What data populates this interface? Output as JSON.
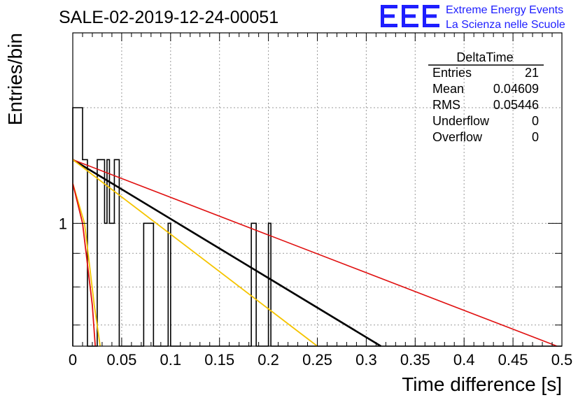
{
  "chart_data": {
    "type": "histogram",
    "title": "SALE-02-2019-12-24-00051",
    "xlabel": "Time difference [s]",
    "ylabel": "Entries/bin",
    "xlim": [
      0,
      0.5
    ],
    "ylog": true,
    "ylim": [
      0.65,
      1.95
    ],
    "x_ticks": [
      {
        "value": 0,
        "label": "0"
      },
      {
        "value": 0.05,
        "label": "0.05"
      },
      {
        "value": 0.1,
        "label": "0.1"
      },
      {
        "value": 0.15,
        "label": "0.15"
      },
      {
        "value": 0.2,
        "label": "0.2"
      },
      {
        "value": 0.25,
        "label": "0.25"
      },
      {
        "value": 0.3,
        "label": "0.3"
      },
      {
        "value": 0.35,
        "label": "0.35"
      },
      {
        "value": 0.4,
        "label": "0.4"
      },
      {
        "value": 0.45,
        "label": "0.45"
      },
      {
        "value": 0.5,
        "label": "0.5"
      }
    ],
    "y_ticks": [
      {
        "value": 1,
        "label": "1"
      }
    ],
    "grid": true,
    "bin_width": 0.0025,
    "bins": [
      {
        "x0": 0.0,
        "x1": 0.01,
        "value": 1.5
      },
      {
        "x0": 0.01,
        "x1": 0.015,
        "value": 1.25
      },
      {
        "x0": 0.015,
        "x1": 0.025,
        "value": 0.65
      },
      {
        "x0": 0.025,
        "x1": 0.0325,
        "value": 1.25
      },
      {
        "x0": 0.0325,
        "x1": 0.035,
        "value": 1.0
      },
      {
        "x0": 0.035,
        "x1": 0.0375,
        "value": 1.25
      },
      {
        "x0": 0.0375,
        "x1": 0.0425,
        "value": 1.0
      },
      {
        "x0": 0.0425,
        "x1": 0.0475,
        "value": 1.25
      },
      {
        "x0": 0.0475,
        "x1": 0.0725,
        "value": 0.65
      },
      {
        "x0": 0.0725,
        "x1": 0.0825,
        "value": 1.0
      },
      {
        "x0": 0.0825,
        "x1": 0.0975,
        "value": 0.65
      },
      {
        "x0": 0.0975,
        "x1": 0.0975,
        "value": 1.0
      },
      {
        "x0": 0.0975,
        "x1": 0.1,
        "value": 1.0
      },
      {
        "x0": 0.1,
        "x1": 0.1825,
        "value": 0.65
      },
      {
        "x0": 0.1825,
        "x1": 0.1875,
        "value": 1.0
      },
      {
        "x0": 0.1875,
        "x1": 0.2,
        "value": 0.65
      },
      {
        "x0": 0.2,
        "x1": 0.2025,
        "value": 1.0
      },
      {
        "x0": 0.2025,
        "x1": 0.5,
        "value": 0.65
      }
    ],
    "series": [
      {
        "color": "#000000",
        "width": 2.6,
        "points": [
          [
            0.0,
            1.25
          ],
          [
            0.315,
            0.65
          ]
        ]
      },
      {
        "color": "#e01010",
        "width": 1.6,
        "points": [
          [
            0.0,
            1.25
          ],
          [
            0.495,
            0.65
          ]
        ]
      },
      {
        "color": "#f5c400",
        "width": 1.8,
        "points": [
          [
            0.0,
            1.25
          ],
          [
            0.25,
            0.65
          ]
        ]
      },
      {
        "color": "#f5c400",
        "width": 1.8,
        "points": [
          [
            0.0,
            1.15
          ],
          [
            0.012,
            1.0
          ],
          [
            0.022,
            0.75
          ],
          [
            0.028,
            0.65
          ]
        ]
      },
      {
        "color": "#e01010",
        "width": 1.8,
        "points": [
          [
            0.0,
            1.15
          ],
          [
            0.01,
            1.0
          ],
          [
            0.02,
            0.75
          ],
          [
            0.023,
            0.65
          ]
        ]
      }
    ]
  },
  "stats_box": {
    "title": "DeltaTime",
    "rows": [
      {
        "label": "Entries",
        "value": "21"
      },
      {
        "label": "Mean",
        "value": "0.04609"
      },
      {
        "label": "RMS",
        "value": "0.05446"
      },
      {
        "label": "Underflow",
        "value": "0"
      },
      {
        "label": "Overflow",
        "value": "0"
      }
    ]
  },
  "logo": {
    "mark": "EEE",
    "line1": "Extreme Energy Events",
    "line2": "La Scienza nelle Scuole",
    "color": "#1e1eff"
  }
}
